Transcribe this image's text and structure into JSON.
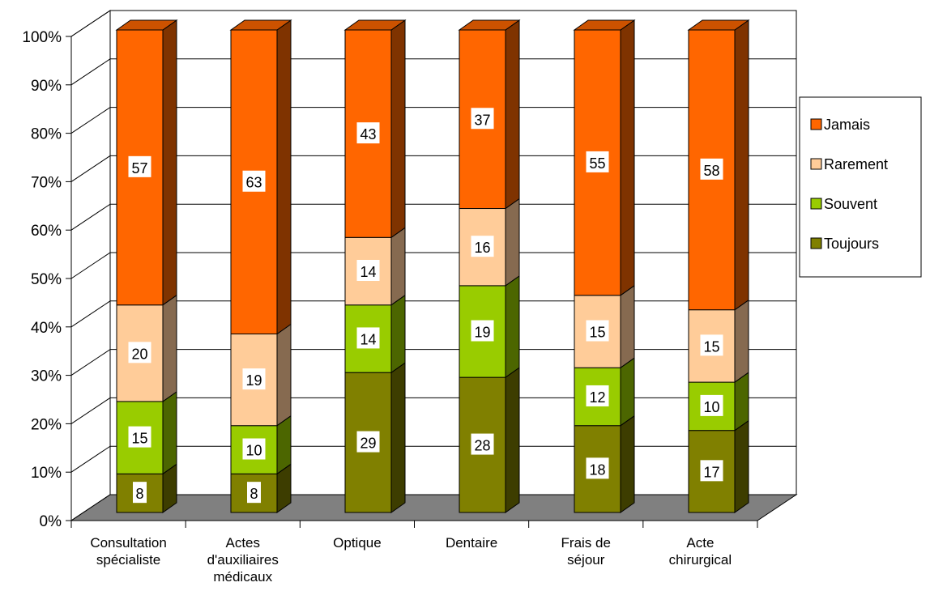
{
  "chart_data": {
    "type": "bar",
    "stacked": true,
    "percent_stacked": true,
    "three_d": true,
    "categories": [
      [
        "Consultation",
        "spécialiste"
      ],
      [
        "Actes",
        "d'auxiliaires",
        "médicaux"
      ],
      [
        "Optique"
      ],
      [
        "Dentaire"
      ],
      [
        "Frais de",
        "séjour"
      ],
      [
        "Acte",
        "chirurgical"
      ]
    ],
    "series": [
      {
        "name": "Toujours",
        "values": [
          8,
          8,
          29,
          28,
          18,
          17
        ],
        "color": "#808000",
        "side_color": "#3d3d00",
        "top_color": "#5f5f00"
      },
      {
        "name": "Souvent",
        "values": [
          15,
          10,
          14,
          19,
          12,
          10
        ],
        "color": "#99cc00",
        "side_color": "#4c6600",
        "top_color": "#739900"
      },
      {
        "name": "Rarement",
        "values": [
          20,
          19,
          14,
          16,
          15,
          15
        ],
        "color": "#ffcc99",
        "side_color": "#866a50",
        "top_color": "#c9a17a"
      },
      {
        "name": "Jamais",
        "values": [
          57,
          63,
          43,
          37,
          55,
          58
        ],
        "color": "#ff6600",
        "side_color": "#7f3300",
        "top_color": "#cc5200"
      }
    ],
    "yticks": [
      "0%",
      "10%",
      "20%",
      "30%",
      "40%",
      "50%",
      "60%",
      "70%",
      "80%",
      "90%",
      "100%"
    ],
    "ylim": [
      0,
      100
    ],
    "grid": true,
    "legend_position": "right",
    "floor_color": "#808080"
  }
}
